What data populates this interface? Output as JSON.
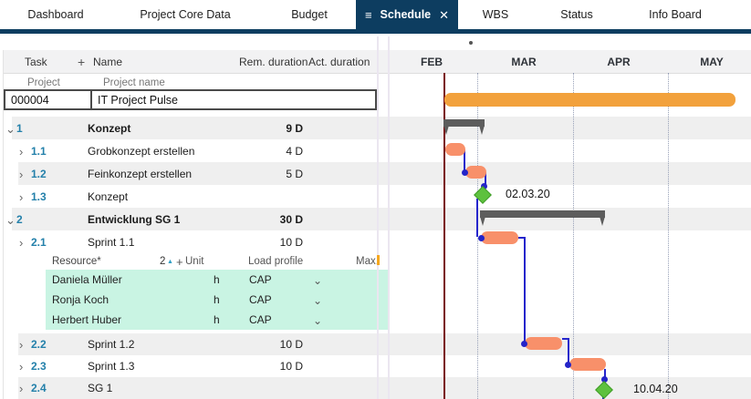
{
  "tab_bar": {
    "tabs": [
      "Dashboard",
      "Project Core Data",
      "Budget",
      "Schedule",
      "WBS",
      "Status",
      "Info Board"
    ],
    "active_tab": "Schedule",
    "icons": {
      "menu": "≡",
      "close": "✕"
    }
  },
  "table": {
    "columns": {
      "task": "Task",
      "add": "+",
      "name": "Name",
      "rem_duration": "Rem. duration",
      "act_duration": "Act. duration"
    },
    "project_field_labels": {
      "id": "Project",
      "name": "Project name"
    },
    "project": {
      "id": "000004",
      "name": "IT Project Pulse"
    },
    "icons": {
      "chevron_expanded": "⌄",
      "chevron_collapsed": "›"
    },
    "rows": [
      {
        "num": "1",
        "name": "Konzept",
        "rem": "9 D",
        "act": "",
        "level": 1,
        "summary": true,
        "expanded": true
      },
      {
        "num": "1.1",
        "name": "Grobkonzept erstellen",
        "rem": "4 D",
        "act": "",
        "level": 2,
        "summary": false,
        "expanded": false
      },
      {
        "num": "1.2",
        "name": "Feinkonzept erstellen",
        "rem": "5 D",
        "act": "",
        "level": 2,
        "summary": false,
        "expanded": false
      },
      {
        "num": "1.3",
        "name": "Konzept",
        "rem": "",
        "act": "",
        "level": 2,
        "summary": false,
        "expanded": false
      },
      {
        "num": "2",
        "name": "Entwicklung SG 1",
        "rem": "30 D",
        "act": "",
        "level": 1,
        "summary": true,
        "expanded": true
      },
      {
        "num": "2.1",
        "name": "Sprint 1.1",
        "rem": "10 D",
        "act": "",
        "level": 2,
        "summary": false,
        "expanded": false
      },
      {
        "num": "2.2",
        "name": "Sprint 1.2",
        "rem": "10 D",
        "act": "",
        "level": 2,
        "summary": false,
        "expanded": false
      },
      {
        "num": "2.3",
        "name": "Sprint 1.3",
        "rem": "10 D",
        "act": "",
        "level": 2,
        "summary": false,
        "expanded": false
      },
      {
        "num": "2.4",
        "name": "SG 1",
        "rem": "",
        "act": "",
        "level": 2,
        "summary": false,
        "expanded": false
      }
    ],
    "resource_grid": {
      "columns": {
        "resource": "Resource*",
        "sort_count": "2",
        "sort_icon": "▲",
        "add": "+",
        "unit": "Unit",
        "load_profile": "Load profile",
        "max": "Max."
      },
      "dropdown_icon": "⌄",
      "rows": [
        {
          "resource": "Daniela Müller",
          "unit": "h",
          "load_profile": "CAP"
        },
        {
          "resource": "Ronja Koch",
          "unit": "h",
          "load_profile": "CAP"
        },
        {
          "resource": "Herbert Huber",
          "unit": "h",
          "load_profile": "CAP"
        }
      ]
    }
  },
  "gantt": {
    "months": [
      "FEB",
      "MAR",
      "APR",
      "MAY"
    ],
    "milestones": [
      {
        "task": "1.3",
        "label": "02.03.20"
      },
      {
        "task": "2.4",
        "label": "10.04.20"
      }
    ],
    "colors": {
      "project_bar": "#F2A13C",
      "task_bar": "#F8906A",
      "summary_bar": "#5D5D5D",
      "milestone": "#5EC13E",
      "connector": "#2525CC",
      "today_line": "#7A0D10",
      "resource_highlight": "#C9F4E3",
      "active_tab": "#0D3D60"
    }
  }
}
